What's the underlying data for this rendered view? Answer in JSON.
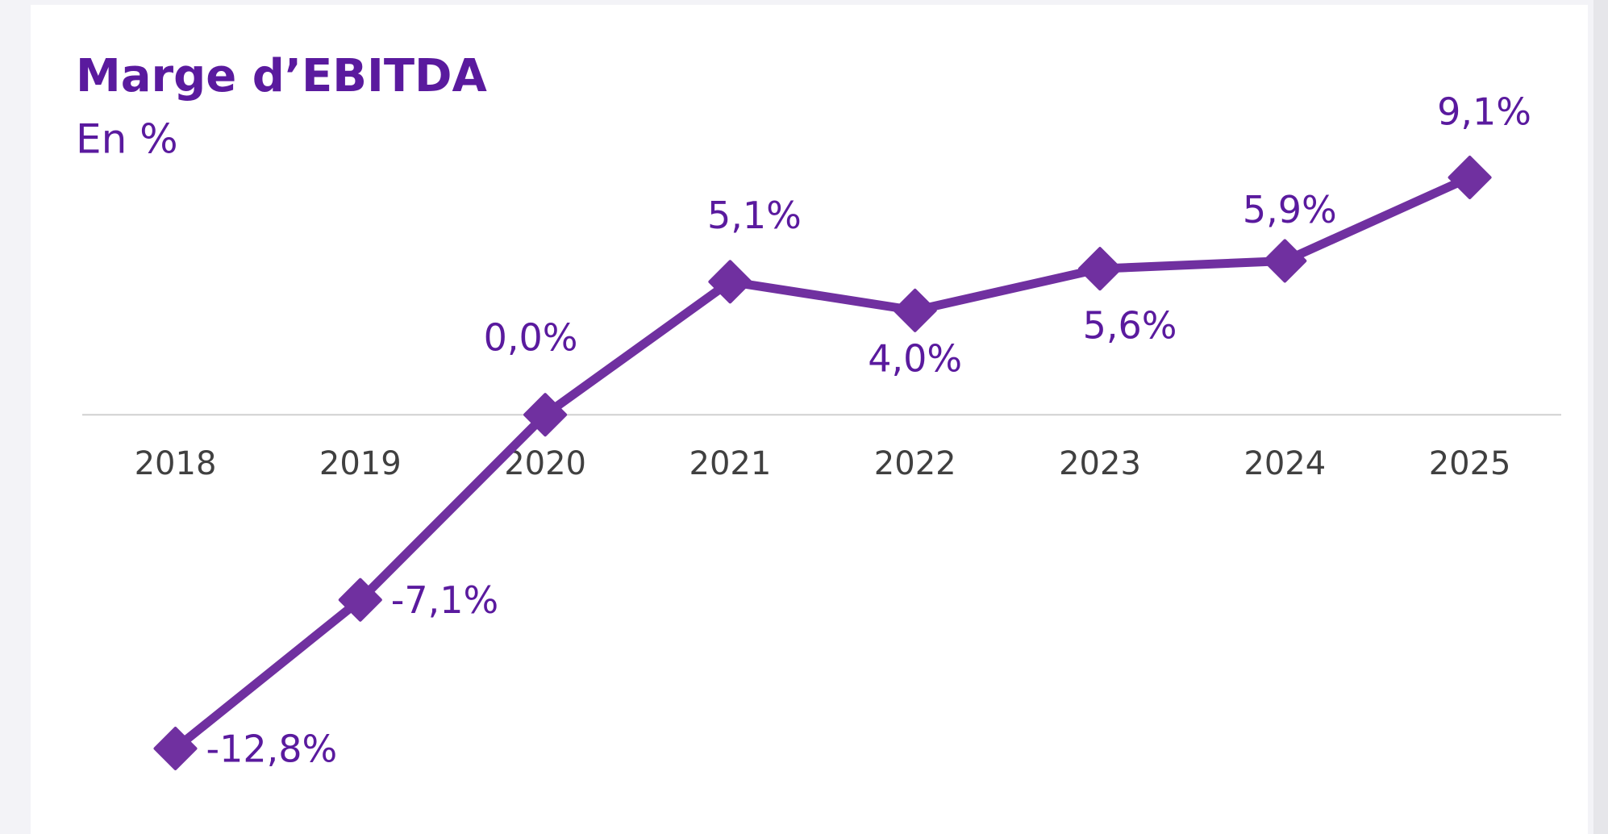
{
  "chart_data": {
    "type": "line",
    "title": "Marge d’EBITDA",
    "subtitle": "En %",
    "categories": [
      "2018",
      "2019",
      "2020",
      "2021",
      "2022",
      "2023",
      "2024",
      "2025"
    ],
    "series": [
      {
        "name": "Marge d’EBITDA",
        "color": "#7030a0",
        "values": [
          -12.8,
          -7.1,
          0.0,
          5.1,
          4.0,
          5.6,
          5.9,
          9.1
        ],
        "value_labels": [
          "-12,8%",
          "-7,1%",
          "0,0%",
          "5,1%",
          "4,0%",
          "5,6%",
          "5,9%",
          "9,1%"
        ]
      }
    ]
  }
}
